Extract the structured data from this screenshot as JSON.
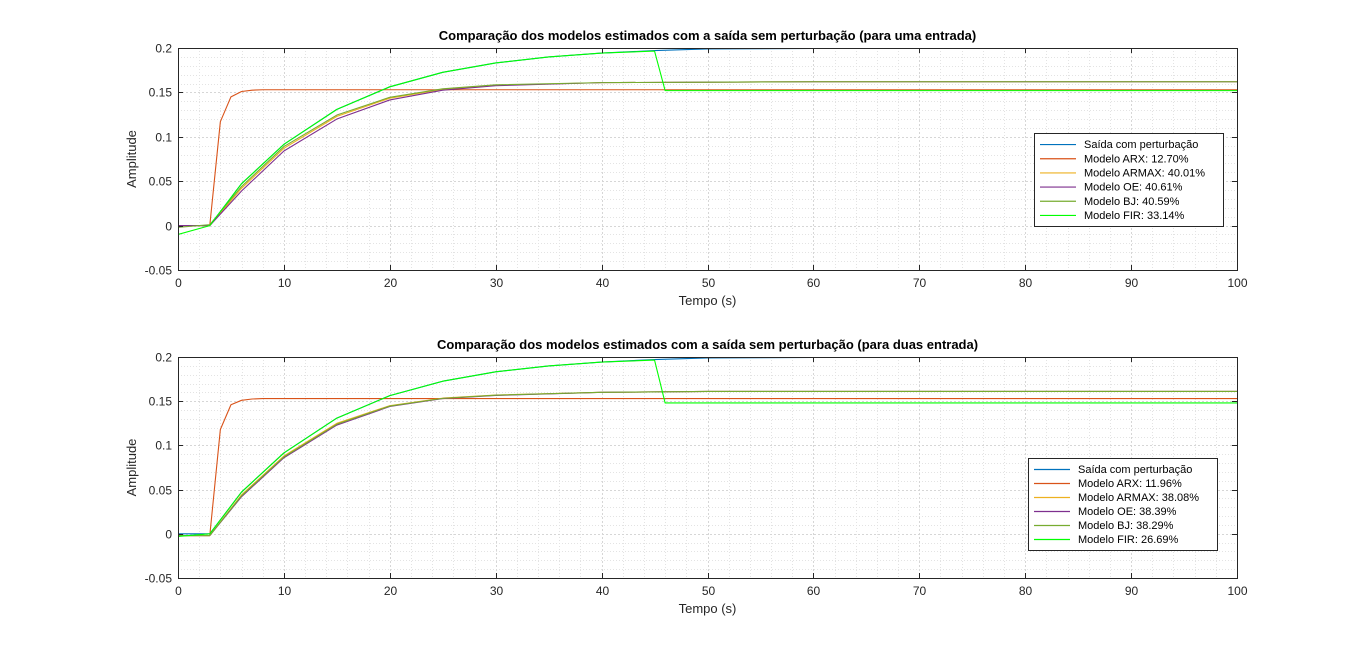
{
  "chart_data": [
    {
      "type": "line",
      "title": "Comparação dos modelos estimados com a saída sem perturbação (para uma entrada)",
      "xlabel": "Tempo (s)",
      "ylabel": "Amplitude",
      "xlim": [
        0,
        100
      ],
      "ylim": [
        -0.05,
        0.2
      ],
      "xticks": [
        0,
        10,
        20,
        30,
        40,
        50,
        60,
        70,
        80,
        90,
        100
      ],
      "yticks": [
        -0.05,
        0,
        0.05,
        0.1,
        0.15,
        0.2
      ],
      "ytick_labels": [
        "-0.05",
        "0",
        "0.05",
        "0.1",
        "0.15",
        "0.2"
      ],
      "grid": true,
      "minor_grid": true,
      "legend_position": "right",
      "series": [
        {
          "name": "Saída com perturbação",
          "color": "#0072BD",
          "x": [
            0,
            3,
            6,
            10,
            15,
            20,
            25,
            30,
            35,
            40,
            45,
            50,
            60,
            70,
            80,
            90,
            100
          ],
          "y": [
            0,
            0,
            0.0472,
            0.0915,
            0.1309,
            0.1563,
            0.1726,
            0.1832,
            0.1899,
            0.1943,
            0.1971,
            0.1989,
            0.1995,
            0.1998,
            0.1999,
            0.2,
            0.2
          ]
        },
        {
          "name": "Modelo ARX: 12.70%",
          "color": "#D95319",
          "x": [
            0,
            3,
            4,
            5,
            6,
            7,
            8,
            10,
            20,
            100
          ],
          "y": [
            0,
            0,
            0.117,
            0.145,
            0.151,
            0.1525,
            0.153,
            0.153,
            0.153,
            0.153
          ]
        },
        {
          "name": "Modelo ARMAX: 40.01%",
          "color": "#EDB120",
          "x": [
            0,
            3,
            6,
            10,
            15,
            20,
            25,
            30,
            40,
            50,
            60,
            80,
            100
          ],
          "y": [
            0,
            0,
            0.042,
            0.087,
            0.123,
            0.1435,
            0.1535,
            0.158,
            0.161,
            0.1615,
            0.162,
            0.162,
            0.162
          ]
        },
        {
          "name": "Modelo OE: 40.61%",
          "color": "#7E2F8E",
          "x": [
            0,
            3,
            6,
            10,
            15,
            20,
            25,
            30,
            40,
            50,
            60,
            80,
            100
          ],
          "y": [
            0,
            0,
            0.039,
            0.084,
            0.12,
            0.1415,
            0.1525,
            0.1575,
            0.161,
            0.1615,
            0.162,
            0.162,
            0.162
          ]
        },
        {
          "name": "Modelo BJ: 40.59%",
          "color": "#77AC30",
          "x": [
            0,
            3,
            6,
            10,
            15,
            20,
            25,
            30,
            40,
            50,
            60,
            80,
            100
          ],
          "y": [
            -0.002,
            0.001,
            0.044,
            0.089,
            0.1245,
            0.1445,
            0.154,
            0.1585,
            0.161,
            0.1615,
            0.162,
            0.162,
            0.162
          ]
        },
        {
          "name": "Modelo FIR: 33.14%",
          "color": "#00FF00",
          "x": [
            0,
            3,
            6,
            10,
            15,
            20,
            25,
            30,
            35,
            40,
            45,
            46,
            50,
            60,
            80,
            100
          ],
          "y": [
            -0.01,
            0,
            0.0472,
            0.0915,
            0.1309,
            0.1563,
            0.1726,
            0.1832,
            0.1899,
            0.1943,
            0.1965,
            0.152,
            0.152,
            0.152,
            0.152,
            0.152
          ]
        }
      ]
    },
    {
      "type": "line",
      "title": "Comparação dos modelos estimados com a saída sem perturbação (para duas entrada)",
      "xlabel": "Tempo (s)",
      "ylabel": "Amplitude",
      "xlim": [
        0,
        100
      ],
      "ylim": [
        -0.05,
        0.2
      ],
      "xticks": [
        0,
        10,
        20,
        30,
        40,
        50,
        60,
        70,
        80,
        90,
        100
      ],
      "yticks": [
        -0.05,
        0,
        0.05,
        0.1,
        0.15,
        0.2
      ],
      "ytick_labels": [
        "-0.05",
        "0",
        "0.05",
        "0.1",
        "0.15",
        "0.2"
      ],
      "grid": true,
      "minor_grid": true,
      "legend_position": "right",
      "series": [
        {
          "name": "Saída com perturbação",
          "color": "#0072BD",
          "x": [
            0,
            3,
            6,
            10,
            15,
            20,
            25,
            30,
            35,
            40,
            45,
            50,
            60,
            70,
            80,
            90,
            100
          ],
          "y": [
            0,
            0,
            0.0472,
            0.0915,
            0.1309,
            0.1563,
            0.1726,
            0.1832,
            0.1899,
            0.1943,
            0.1971,
            0.1989,
            0.1995,
            0.1998,
            0.1999,
            0.2,
            0.2
          ]
        },
        {
          "name": "Modelo ARX: 11.96%",
          "color": "#D95319",
          "x": [
            0,
            3,
            4,
            5,
            6,
            7,
            8,
            10,
            20,
            100
          ],
          "y": [
            -0.002,
            -0.002,
            0.118,
            0.146,
            0.151,
            0.1525,
            0.153,
            0.153,
            0.153,
            0.153
          ]
        },
        {
          "name": "Modelo ARMAX: 38.08%",
          "color": "#EDB120",
          "x": [
            0,
            3,
            6,
            10,
            15,
            20,
            25,
            30,
            40,
            50,
            60,
            80,
            100
          ],
          "y": [
            -0.002,
            -0.002,
            0.044,
            0.088,
            0.125,
            0.145,
            0.1535,
            0.157,
            0.16,
            0.161,
            0.161,
            0.161,
            0.161
          ]
        },
        {
          "name": "Modelo OE: 38.39%",
          "color": "#7E2F8E",
          "x": [
            0,
            3,
            6,
            10,
            15,
            20,
            25,
            30,
            40,
            50,
            60,
            80,
            100
          ],
          "y": [
            -0.002,
            -0.002,
            0.042,
            0.086,
            0.123,
            0.144,
            0.153,
            0.1565,
            0.16,
            0.161,
            0.161,
            0.161,
            0.161
          ]
        },
        {
          "name": "Modelo BJ: 38.29%",
          "color": "#77AC30",
          "x": [
            0,
            3,
            6,
            10,
            15,
            20,
            25,
            30,
            40,
            50,
            60,
            80,
            100
          ],
          "y": [
            -0.002,
            -0.002,
            0.043,
            0.087,
            0.124,
            0.1445,
            0.1532,
            0.1568,
            0.16,
            0.161,
            0.161,
            0.161,
            0.161
          ]
        },
        {
          "name": "Modelo FIR: 26.69%",
          "color": "#00FF00",
          "x": [
            0,
            3,
            6,
            10,
            15,
            20,
            25,
            30,
            35,
            40,
            45,
            46,
            50,
            60,
            80,
            100
          ],
          "y": [
            -0.003,
            0,
            0.0472,
            0.0915,
            0.1309,
            0.1563,
            0.1726,
            0.1832,
            0.1899,
            0.1943,
            0.1965,
            0.148,
            0.148,
            0.148,
            0.148,
            0.148
          ]
        }
      ]
    }
  ]
}
